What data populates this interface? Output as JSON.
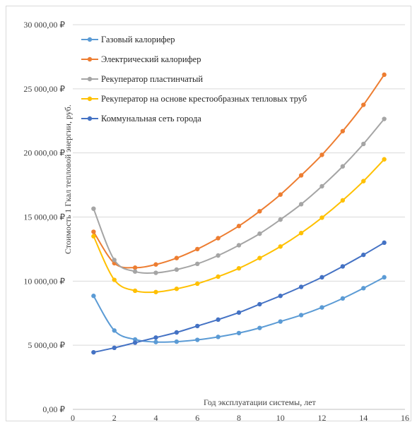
{
  "chart_data": {
    "type": "line",
    "xlabel": "Год эксплуатации системы, лет",
    "ylabel": "Стоимость 1 Гкал тепловой энергии, руб.",
    "xlim": [
      0,
      16
    ],
    "ylim": [
      0,
      30000
    ],
    "x_ticks": [
      "0",
      "2",
      "4",
      "6",
      "8",
      "10",
      "12",
      "14",
      "16"
    ],
    "y_ticks": [
      "0,00 ₽",
      "5 000,00 ₽",
      "10 000,00 ₽",
      "15 000,00 ₽",
      "20 000,00 ₽",
      "25 000,00 ₽",
      "30 000,00 ₽"
    ],
    "grid": "horizontal",
    "legend_position": "top-left",
    "x": [
      1,
      2,
      3,
      4,
      5,
      6,
      7,
      8,
      9,
      10,
      11,
      12,
      13,
      14,
      15
    ],
    "series": [
      {
        "name": "Газовый калорифер",
        "color": "#5b9bd5",
        "values": [
          8850,
          6150,
          5450,
          5250,
          5280,
          5420,
          5650,
          5950,
          6350,
          6850,
          7350,
          7950,
          8650,
          9450,
          10300
        ]
      },
      {
        "name": "Электрический калорифер",
        "color": "#ed7d31",
        "values": [
          13850,
          11400,
          11050,
          11300,
          11800,
          12500,
          13350,
          14300,
          15450,
          16750,
          18250,
          19850,
          21700,
          23750,
          26100
        ]
      },
      {
        "name": "Рекуператор пластинчатый",
        "color": "#a5a5a5",
        "values": [
          15650,
          11650,
          10750,
          10650,
          10900,
          11350,
          12000,
          12800,
          13700,
          14800,
          16000,
          17400,
          18950,
          20700,
          22650
        ]
      },
      {
        "name": "Рекуператор на основе крестообразных тепловых труб",
        "color": "#ffc000",
        "values": [
          13500,
          10100,
          9250,
          9150,
          9400,
          9800,
          10350,
          11000,
          11800,
          12700,
          13750,
          14950,
          16300,
          17800,
          19500
        ]
      },
      {
        "name": "Коммунальная сеть города",
        "color": "#4472c4",
        "values": [
          4450,
          4800,
          5200,
          5600,
          6000,
          6500,
          7000,
          7550,
          8200,
          8850,
          9550,
          10300,
          11150,
          12050,
          13000
        ]
      }
    ]
  }
}
